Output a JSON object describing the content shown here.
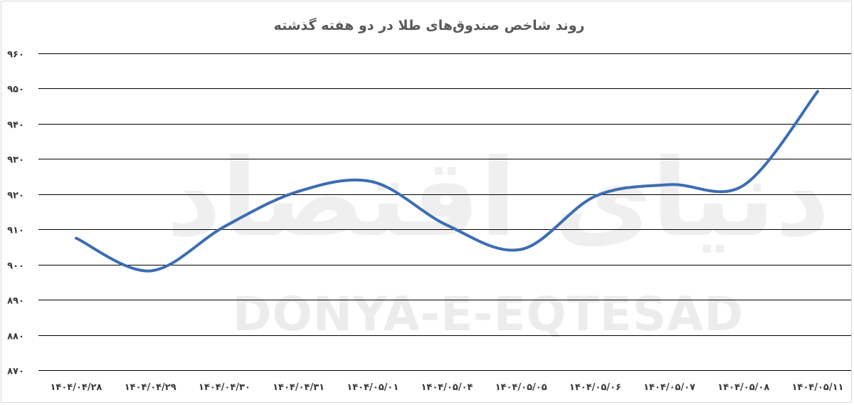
{
  "chart_data": {
    "type": "line",
    "title": "روند شاخص صندوق‌های طلا در دو هفته گذشته",
    "categories": [
      "۱۴۰۴/۰۴/۲۸",
      "۱۴۰۴/۰۴/۲۹",
      "۱۴۰۴/۰۴/۳۰",
      "۱۴۰۴/۰۴/۳۱",
      "۱۴۰۴/۰۵/۰۱",
      "۱۴۰۴/۰۵/۰۴",
      "۱۴۰۴/۰۵/۰۵",
      "۱۴۰۴/۰۵/۰۶",
      "۱۴۰۴/۰۵/۰۷",
      "۱۴۰۴/۰۵/۰۸",
      "۱۴۰۴/۰۵/۱۱"
    ],
    "series": [
      {
        "values": [
          907.5,
          898.2,
          910.8,
          920.8,
          923.5,
          911.2,
          904.3,
          919.4,
          922.7,
          922.5,
          949.2
        ]
      }
    ],
    "xlabel": "",
    "ylabel": "",
    "ylim": [
      870,
      960
    ],
    "yticks": [
      960,
      950,
      940,
      930,
      920,
      910,
      900,
      890,
      880,
      870
    ],
    "ytick_labels": [
      "۹۶۰",
      "۹۵۰",
      "۹۴۰",
      "۹۳۰",
      "۹۲۰",
      "۹۱۰",
      "۹۰۰",
      "۸۹۰",
      "۸۸۰",
      "۸۷۰"
    ],
    "grid": true,
    "legend": "none",
    "colors": {
      "series": "#3b6db3",
      "grid": "#000000",
      "text": "#3a3a3a",
      "title": "#595959"
    }
  },
  "watermark": {
    "latin": "DONYA-E-EQTESAD",
    "farsi": "دنیای اقتصاد"
  }
}
